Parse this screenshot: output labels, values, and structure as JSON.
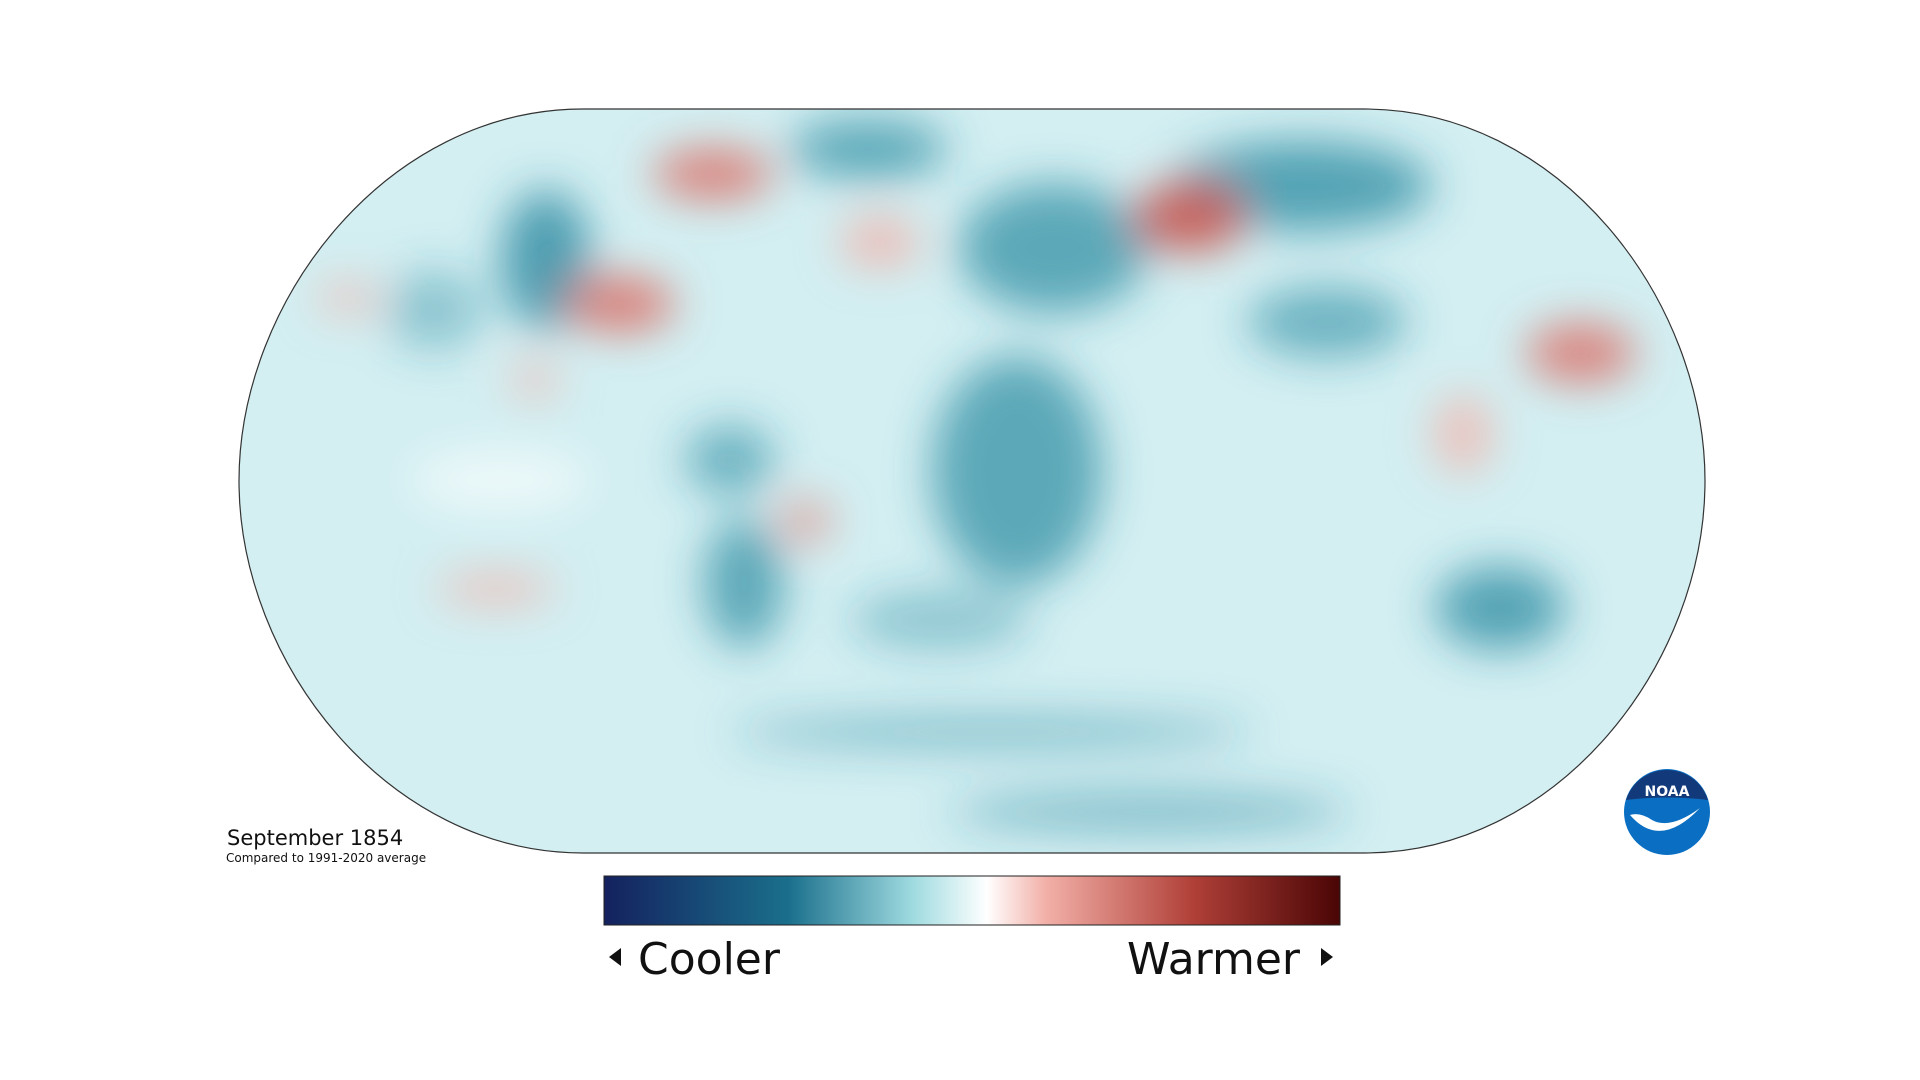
{
  "legend": {
    "title": "September 1854",
    "subtitle": "Compared to 1991-2020 average",
    "low_label": "Cooler",
    "high_label": "Warmer"
  },
  "logo": {
    "text": "NOAA"
  }
}
